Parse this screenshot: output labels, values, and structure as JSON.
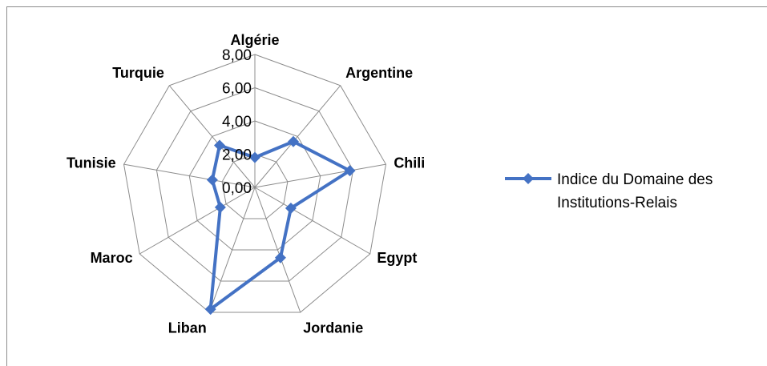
{
  "chart_data": {
    "type": "radar",
    "categories": [
      "Algérie",
      "Argentine",
      "Chili",
      "Egypt",
      "Jordanie",
      "Liban",
      "Maroc",
      "Tunisie",
      "Turquie"
    ],
    "series": [
      {
        "name": "Indice du Domaine des Institutions-Relais",
        "values": [
          1.8,
          3.6,
          5.8,
          2.5,
          4.5,
          7.8,
          2.4,
          2.6,
          3.3
        ],
        "color": "#4472c4"
      }
    ],
    "r_ticks": [
      "0,00",
      "2,00",
      "4,00",
      "6,00",
      "8,00"
    ],
    "r_range": [
      0,
      8
    ],
    "grid": true,
    "legend_position": "right",
    "legend_lines": [
      "Indice du Domaine des",
      "Institutions-Relais"
    ]
  }
}
